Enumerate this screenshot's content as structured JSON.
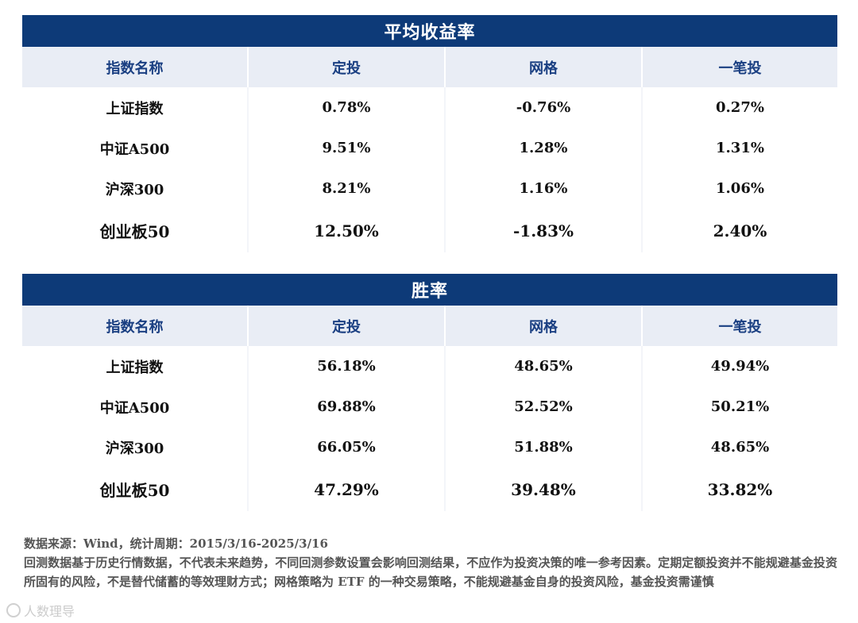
{
  "tables": [
    {
      "title": "平均收益率",
      "headers": [
        "指数名称",
        "定投",
        "网格",
        "一笔投"
      ],
      "rows": [
        [
          "上证指数",
          "0.78%",
          "-0.76%",
          "0.27%"
        ],
        [
          "中证A500",
          "9.51%",
          "1.28%",
          "1.31%"
        ],
        [
          "沪深300",
          "8.21%",
          "1.16%",
          "1.06%"
        ],
        [
          "创业板50",
          "12.50%",
          "-1.83%",
          "2.40%"
        ]
      ]
    },
    {
      "title": "胜率",
      "headers": [
        "指数名称",
        "定投",
        "网格",
        "一笔投"
      ],
      "rows": [
        [
          "上证指数",
          "56.18%",
          "48.65%",
          "49.94%"
        ],
        [
          "中证A500",
          "69.88%",
          "52.52%",
          "50.21%"
        ],
        [
          "沪深300",
          "66.05%",
          "51.88%",
          "48.65%"
        ],
        [
          "创业板50",
          "47.29%",
          "39.48%",
          "33.82%"
        ]
      ]
    }
  ],
  "footer": {
    "source": "数据来源：Wind，统计周期：2015/3/16-2025/3/16",
    "disclaimer": "回测数据基于历史行情数据，不代表未来趋势，不同回测参数设置会影响回测结果，不应作为投资决策的唯一参考因素。定期定额投资并不能规避基金投资所固有的风险，不是替代储蓄的等效理财方式；网格策略为 ETF 的一种交易策略，不能规避基金自身的投资风险，基金投资需谨慎"
  },
  "watermark": {
    "text": "人数理导",
    "icon": "watermark-logo-icon"
  },
  "colors": {
    "title_bar": "#0d3a78",
    "header_bg": "#e9edf5",
    "header_text": "#1a3f82"
  }
}
